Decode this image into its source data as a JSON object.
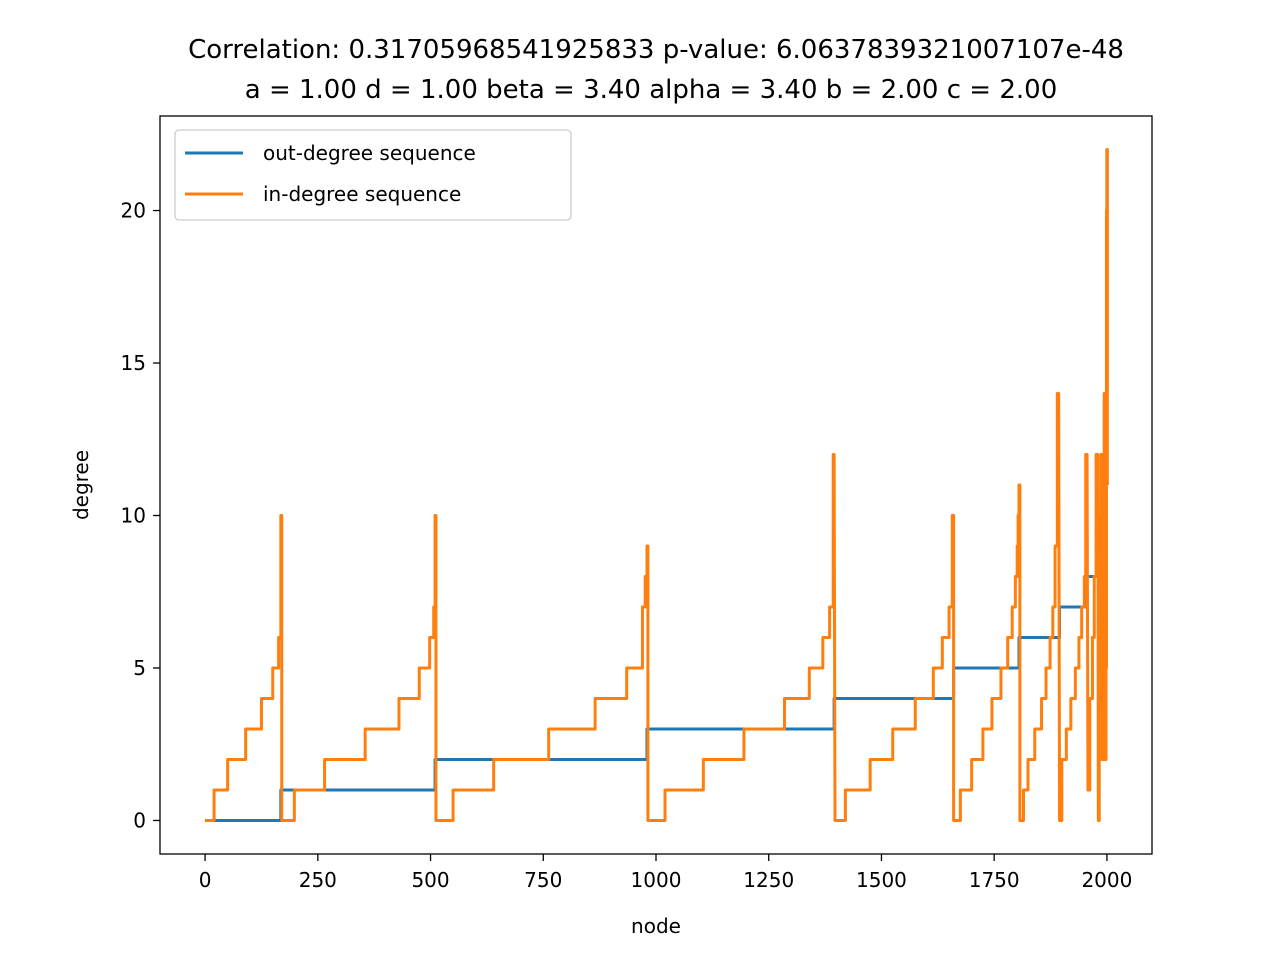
{
  "chart_data": {
    "type": "line",
    "title": "Correlation: 0.31705968541925833 p-value: 6.0637839321007107e-48",
    "subtitle": "a = 1.00 d = 1.00 beta = 3.40 alpha = 3.40 b = 2.00 c = 2.00",
    "xlabel": "node",
    "ylabel": "degree",
    "xlim": [
      -100,
      2100
    ],
    "ylim": [
      -1.1,
      23.1
    ],
    "xticks": [
      0,
      250,
      500,
      750,
      1000,
      1250,
      1500,
      1750,
      2000
    ],
    "yticks": [
      0,
      5,
      10,
      15,
      20
    ],
    "grid": false,
    "legend": "top-left",
    "series": [
      {
        "name": "out-degree sequence",
        "color": "#1f77b4",
        "points": [
          [
            0,
            0
          ],
          [
            168,
            0
          ],
          [
            168,
            1
          ],
          [
            510,
            1
          ],
          [
            510,
            2
          ],
          [
            980,
            2
          ],
          [
            980,
            3
          ],
          [
            1395,
            3
          ],
          [
            1395,
            4
          ],
          [
            1660,
            4
          ],
          [
            1660,
            5
          ],
          [
            1805,
            5
          ],
          [
            1805,
            6
          ],
          [
            1895,
            6
          ],
          [
            1895,
            7
          ],
          [
            1955,
            7
          ],
          [
            1955,
            8
          ],
          [
            1985,
            8
          ],
          [
            1985,
            9
          ],
          [
            1985,
            10
          ],
          [
            1990,
            10
          ],
          [
            1990,
            11
          ],
          [
            1995,
            11
          ],
          [
            1995,
            14
          ],
          [
            2000,
            14
          ],
          [
            2000,
            22
          ]
        ]
      },
      {
        "name": "in-degree sequence",
        "color": "#ff7f0e",
        "points": [
          [
            0,
            0
          ],
          [
            20,
            0
          ],
          [
            20,
            1
          ],
          [
            50,
            1
          ],
          [
            50,
            2
          ],
          [
            90,
            2
          ],
          [
            90,
            3
          ],
          [
            125,
            3
          ],
          [
            125,
            4
          ],
          [
            150,
            4
          ],
          [
            150,
            5
          ],
          [
            163,
            5
          ],
          [
            163,
            6
          ],
          [
            168,
            6
          ],
          [
            168,
            10
          ],
          [
            170,
            10
          ],
          [
            170,
            0
          ],
          [
            198,
            0
          ],
          [
            198,
            1
          ],
          [
            265,
            1
          ],
          [
            265,
            2
          ],
          [
            355,
            2
          ],
          [
            355,
            3
          ],
          [
            430,
            3
          ],
          [
            430,
            4
          ],
          [
            475,
            4
          ],
          [
            475,
            5
          ],
          [
            498,
            5
          ],
          [
            498,
            6
          ],
          [
            507,
            6
          ],
          [
            507,
            7
          ],
          [
            510,
            7
          ],
          [
            510,
            10
          ],
          [
            512,
            10
          ],
          [
            512,
            0
          ],
          [
            550,
            0
          ],
          [
            550,
            1
          ],
          [
            640,
            1
          ],
          [
            640,
            2
          ],
          [
            762,
            2
          ],
          [
            762,
            3
          ],
          [
            865,
            3
          ],
          [
            865,
            4
          ],
          [
            935,
            4
          ],
          [
            935,
            5
          ],
          [
            970,
            5
          ],
          [
            970,
            7
          ],
          [
            976,
            7
          ],
          [
            976,
            8
          ],
          [
            980,
            8
          ],
          [
            980,
            9
          ],
          [
            982,
            9
          ],
          [
            982,
            0
          ],
          [
            1020,
            0
          ],
          [
            1020,
            1
          ],
          [
            1105,
            1
          ],
          [
            1105,
            2
          ],
          [
            1195,
            2
          ],
          [
            1195,
            3
          ],
          [
            1285,
            3
          ],
          [
            1285,
            4
          ],
          [
            1340,
            4
          ],
          [
            1340,
            5
          ],
          [
            1370,
            5
          ],
          [
            1370,
            6
          ],
          [
            1385,
            6
          ],
          [
            1385,
            7
          ],
          [
            1393,
            7
          ],
          [
            1393,
            12
          ],
          [
            1395,
            12
          ],
          [
            1397,
            0
          ],
          [
            1420,
            0
          ],
          [
            1420,
            1
          ],
          [
            1475,
            1
          ],
          [
            1475,
            2
          ],
          [
            1525,
            2
          ],
          [
            1525,
            3
          ],
          [
            1575,
            3
          ],
          [
            1575,
            4
          ],
          [
            1615,
            4
          ],
          [
            1615,
            5
          ],
          [
            1635,
            5
          ],
          [
            1635,
            6
          ],
          [
            1650,
            6
          ],
          [
            1650,
            7
          ],
          [
            1657,
            7
          ],
          [
            1657,
            10
          ],
          [
            1660,
            10
          ],
          [
            1660,
            0
          ],
          [
            1675,
            0
          ],
          [
            1675,
            1
          ],
          [
            1700,
            1
          ],
          [
            1700,
            2
          ],
          [
            1725,
            2
          ],
          [
            1725,
            3
          ],
          [
            1745,
            3
          ],
          [
            1745,
            4
          ],
          [
            1765,
            4
          ],
          [
            1765,
            5
          ],
          [
            1780,
            5
          ],
          [
            1780,
            6
          ],
          [
            1790,
            6
          ],
          [
            1790,
            7
          ],
          [
            1797,
            7
          ],
          [
            1797,
            8
          ],
          [
            1801,
            8
          ],
          [
            1801,
            9
          ],
          [
            1803,
            9
          ],
          [
            1803,
            10
          ],
          [
            1805,
            10
          ],
          [
            1805,
            11
          ],
          [
            1807,
            11
          ],
          [
            1807,
            0
          ],
          [
            1810,
            0
          ],
          [
            1815,
            0
          ],
          [
            1815,
            1
          ],
          [
            1825,
            1
          ],
          [
            1825,
            2
          ],
          [
            1840,
            2
          ],
          [
            1840,
            3
          ],
          [
            1855,
            3
          ],
          [
            1855,
            4
          ],
          [
            1865,
            4
          ],
          [
            1865,
            5
          ],
          [
            1874,
            5
          ],
          [
            1874,
            6
          ],
          [
            1880,
            6
          ],
          [
            1880,
            7
          ],
          [
            1885,
            7
          ],
          [
            1885,
            9
          ],
          [
            1890,
            9
          ],
          [
            1890,
            14
          ],
          [
            1893,
            14
          ],
          [
            1895,
            0
          ],
          [
            1900,
            0
          ],
          [
            1900,
            2
          ],
          [
            1910,
            2
          ],
          [
            1910,
            3
          ],
          [
            1920,
            3
          ],
          [
            1920,
            4
          ],
          [
            1930,
            4
          ],
          [
            1930,
            5
          ],
          [
            1938,
            5
          ],
          [
            1938,
            6
          ],
          [
            1944,
            6
          ],
          [
            1944,
            7
          ],
          [
            1950,
            7
          ],
          [
            1950,
            8
          ],
          [
            1953,
            8
          ],
          [
            1953,
            12
          ],
          [
            1956,
            12
          ],
          [
            1958,
            1
          ],
          [
            1962,
            1
          ],
          [
            1962,
            4
          ],
          [
            1968,
            4
          ],
          [
            1968,
            6
          ],
          [
            1972,
            6
          ],
          [
            1972,
            8
          ],
          [
            1976,
            8
          ],
          [
            1976,
            12
          ],
          [
            1980,
            12
          ],
          [
            1981,
            0
          ],
          [
            1983,
            0
          ],
          [
            1983,
            2
          ],
          [
            1985,
            2
          ],
          [
            1985,
            4
          ],
          [
            1987,
            4
          ],
          [
            1987,
            12
          ],
          [
            1989,
            12
          ],
          [
            1990,
            2
          ],
          [
            1992,
            2
          ],
          [
            1992,
            6
          ],
          [
            1994,
            6
          ],
          [
            1994,
            14
          ],
          [
            1996,
            14
          ],
          [
            1996,
            2
          ],
          [
            1998,
            2
          ],
          [
            1998,
            5
          ],
          [
            1999,
            5
          ],
          [
            1999,
            20
          ],
          [
            2000,
            20
          ],
          [
            2000,
            22
          ],
          [
            2001,
            22
          ],
          [
            2001,
            11
          ],
          [
            2002,
            11
          ]
        ]
      }
    ]
  }
}
